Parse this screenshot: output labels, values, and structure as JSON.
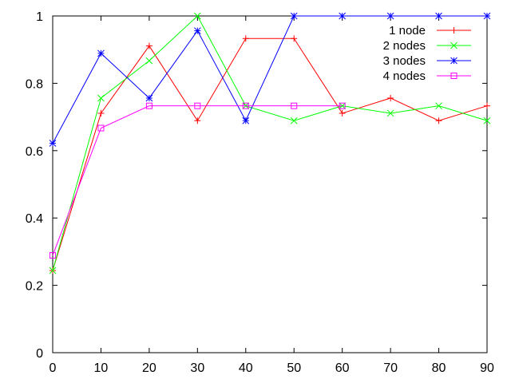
{
  "chart_data": {
    "type": "line",
    "title": "",
    "xlabel": "",
    "ylabel": "",
    "xlim": [
      0,
      90
    ],
    "ylim": [
      0,
      1
    ],
    "xticks": [
      0,
      10,
      20,
      30,
      40,
      50,
      60,
      70,
      80,
      90
    ],
    "yticks": [
      0,
      0.2,
      0.4,
      0.6,
      0.8,
      1
    ],
    "x_tick_labels": [
      "0",
      "10",
      "20",
      "30",
      "40",
      "50",
      "60",
      "70",
      "80",
      "90"
    ],
    "y_tick_labels": [
      "0",
      "0.2",
      "0.4",
      "0.6",
      "0.8",
      "1"
    ],
    "grid": false,
    "legend_position": "top-right",
    "x": [
      0,
      10,
      20,
      30,
      40,
      50,
      60,
      70,
      80,
      90
    ],
    "series": [
      {
        "name": "1 node",
        "color": "#ff0000",
        "marker": "plus",
        "values": [
          0.244,
          0.711,
          0.911,
          0.689,
          0.933,
          0.933,
          0.711,
          0.756,
          0.689,
          0.733
        ]
      },
      {
        "name": "2 nodes",
        "color": "#00ff00",
        "marker": "cross",
        "values": [
          0.244,
          0.756,
          0.867,
          1.0,
          0.733,
          0.689,
          0.733,
          0.711,
          0.733,
          0.689
        ]
      },
      {
        "name": "3 nodes",
        "color": "#0000ff",
        "marker": "star",
        "values": [
          0.622,
          0.889,
          0.756,
          0.956,
          0.689,
          1.0,
          1.0,
          1.0,
          1.0,
          1.0
        ]
      },
      {
        "name": "4 nodes",
        "color": "#ff00ff",
        "marker": "square",
        "values": [
          0.289,
          0.667,
          0.733,
          0.733,
          0.733,
          0.733,
          0.733,
          null,
          null,
          null
        ]
      }
    ]
  }
}
